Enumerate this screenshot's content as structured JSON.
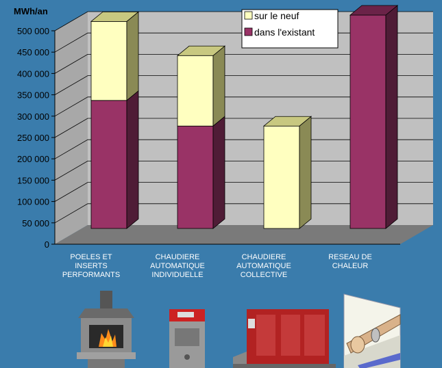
{
  "chart_data": {
    "type": "bar",
    "stacked": true,
    "three_d": true,
    "ylabel": "MWh/an",
    "ylim": [
      0,
      500000
    ],
    "yticks": [
      0,
      50000,
      100000,
      150000,
      200000,
      250000,
      300000,
      350000,
      400000,
      450000,
      500000
    ],
    "ytick_labels": [
      "0",
      "50 000",
      "100 000",
      "150 000",
      "200 000",
      "250 000",
      "300 000",
      "350 000",
      "400 000",
      "450 000",
      "500 000"
    ],
    "grid": true,
    "legend_position": "top-right",
    "categories": [
      [
        "POELES ET",
        "INSERTS",
        "PERFORMANTS"
      ],
      [
        "CHAUDIERE",
        "AUTOMATIQUE",
        "INDIVIDUELLE"
      ],
      [
        "CHAUDIERE",
        "AUTOMATIQUE",
        "COLLECTIVE"
      ],
      [
        "RESEAU DE",
        "CHALEUR"
      ]
    ],
    "series": [
      {
        "name": "dans l'existant",
        "values": [
          300000,
          240000,
          0,
          500000
        ],
        "color": "#993366",
        "top": "#6b2348",
        "side": "#4f1c36"
      },
      {
        "name": "sur le neuf",
        "values": [
          185000,
          165000,
          240000,
          0
        ],
        "color": "#ffffc0",
        "top": "#c8c880",
        "side": "#8a8a55"
      }
    ],
    "legend_order": [
      1,
      0
    ]
  },
  "icons": [
    "fireplace-stove-icon",
    "individual-boiler-icon",
    "collective-boiler-icon",
    "heat-network-pipe-icon"
  ]
}
